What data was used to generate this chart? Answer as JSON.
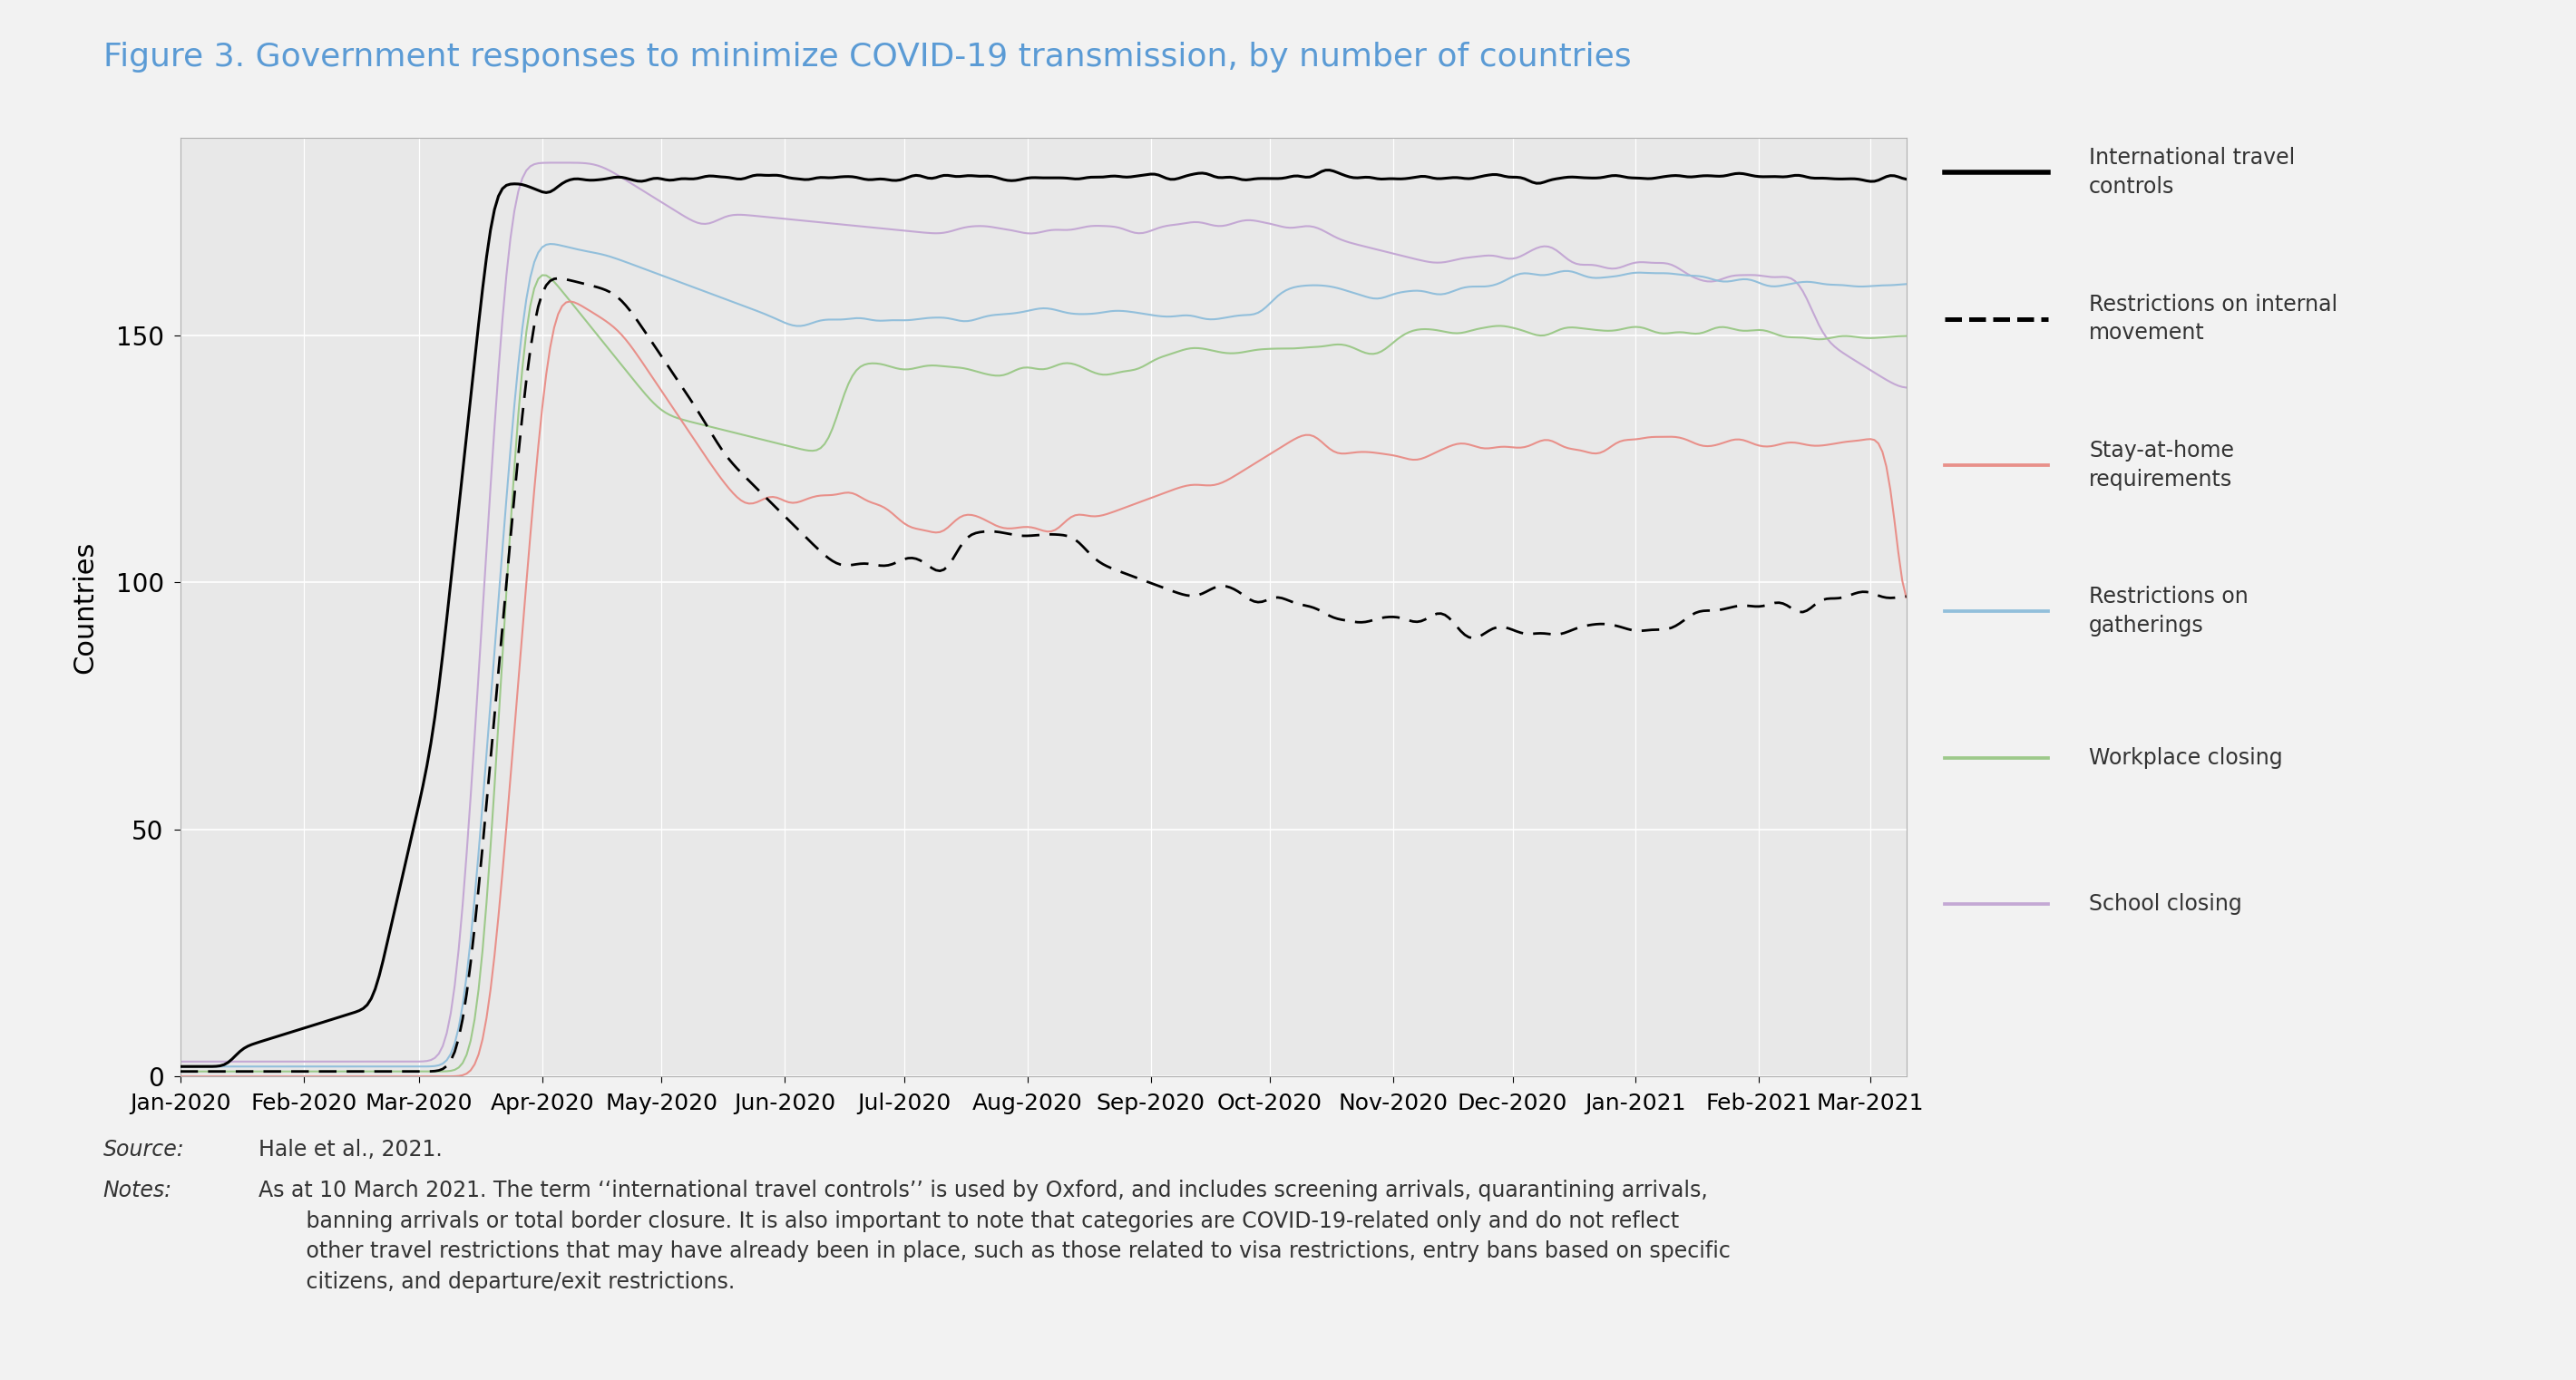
{
  "title": "Figure 3. Government responses to minimize COVID-19 transmission, by number of countries",
  "title_color": "#5B9BD5",
  "ylabel": "Countries",
  "fig_facecolor": "#f2f2f2",
  "plot_facecolor": "#e8e8e8",
  "ylim": [
    0,
    190
  ],
  "yticks": [
    0,
    50,
    100,
    150
  ],
  "legend": [
    {
      "label": "International travel\ncontrols",
      "color": "#000000",
      "linestyle": "solid",
      "linewidth": 2.2
    },
    {
      "label": "Restrictions on internal\nmovement",
      "color": "#000000",
      "linestyle": "dashed",
      "linewidth": 2.0
    },
    {
      "label": "Stay-at-home\nrequirements",
      "color": "#E8908A",
      "linestyle": "solid",
      "linewidth": 1.5
    },
    {
      "label": "Restrictions on\ngatherings",
      "color": "#92BFDB",
      "linestyle": "solid",
      "linewidth": 1.5
    },
    {
      "label": "Workplace closing",
      "color": "#9DC98A",
      "linestyle": "solid",
      "linewidth": 1.5
    },
    {
      "label": "School closing",
      "color": "#C4A8D4",
      "linestyle": "solid",
      "linewidth": 1.5
    }
  ],
  "source_label": "Source:",
  "source_text": "  Hale et al., 2021.",
  "notes_label": "Notes:",
  "notes_text": "  As at 10 March 2021. The term ‘‘international travel controls’’ is used by Oxford, and includes screening arrivals, quarantining arrivals,\n         banning arrivals or total border closure. It is also important to note that categories are COVID-19-related only and do not reflect\n         other travel restrictions that may have already been in place, such as those related to visa restrictions, entry bans based on specific\n         citizens, and departure/exit restrictions."
}
